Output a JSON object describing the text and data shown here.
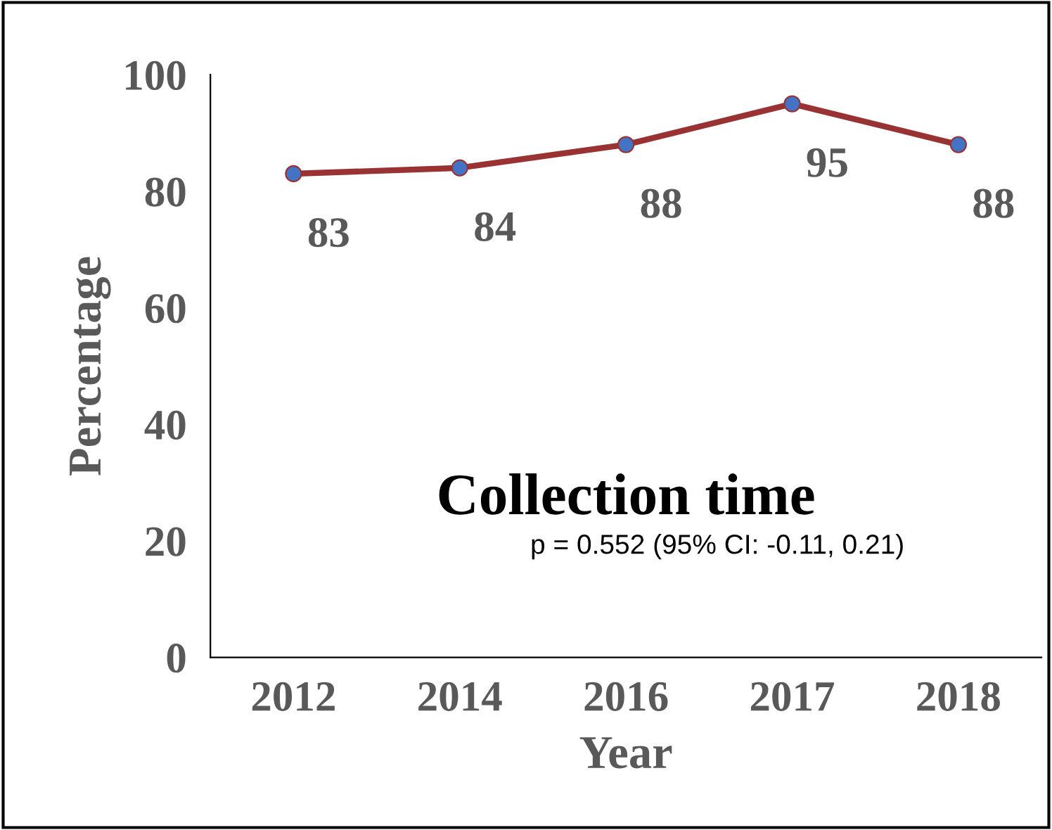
{
  "chart_data": {
    "type": "line",
    "title": "Collection time",
    "xlabel": "Year",
    "ylabel": "Percentage",
    "categories": [
      "2012",
      "2014",
      "2016",
      "2017",
      "2018"
    ],
    "series": [
      {
        "color": "#993333",
        "values": [
          83,
          84,
          88,
          95,
          88
        ]
      }
    ],
    "marker": "circle",
    "line_style": "solid",
    "data_labels": true,
    "ylim": [
      0,
      100
    ],
    "yticks": [
      0,
      20,
      40,
      60,
      80,
      100
    ],
    "grid": false,
    "annotations": [
      "p = 0.552 (95% CI: -0.11, 0.21)"
    ]
  }
}
